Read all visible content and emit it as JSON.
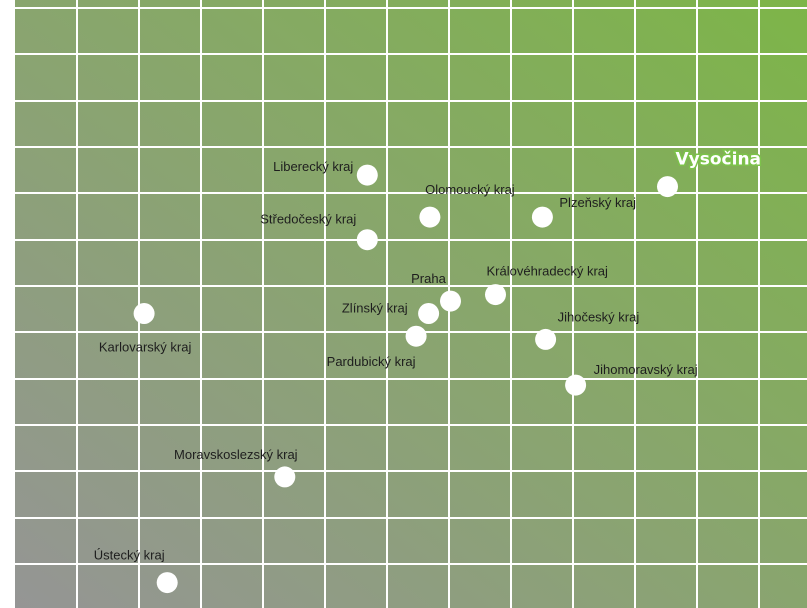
{
  "colors": {
    "gradient_light": "#7db548",
    "gradient_dark": "#959595",
    "grid": "#ffffff",
    "point": "#ffffff",
    "label": "#1e1e1e",
    "highlight_outline": "#7cc24a"
  },
  "chart_data": {
    "type": "scatter",
    "title": "",
    "xlabel": "",
    "ylabel": "",
    "grid": true,
    "legend": "none",
    "axes_labeled": false,
    "xlim": [
      0,
      13
    ],
    "ylim": [
      0,
      13
    ],
    "highlight": "Vysočina",
    "points": [
      {
        "label": "Liberecký kraj",
        "x": 5.65,
        "y": 9.38
      },
      {
        "label": "Olomoucký kraj",
        "x": 6.65,
        "y": 8.47
      },
      {
        "label": "Plzeňský kraj",
        "x": 8.45,
        "y": 8.47
      },
      {
        "label": "Vysočina",
        "x": 10.45,
        "y": 9.13
      },
      {
        "label": "Středočeský kraj",
        "x": 5.65,
        "y": 7.98
      },
      {
        "label": "Praha",
        "x": 6.98,
        "y": 6.65
      },
      {
        "label": "Královéhradecký kraj",
        "x": 7.7,
        "y": 6.79
      },
      {
        "label": "Zlínský kraj",
        "x": 6.63,
        "y": 6.38
      },
      {
        "label": "Pardubický kraj",
        "x": 6.43,
        "y": 5.89
      },
      {
        "label": "Karlovarský kraj",
        "x": 2.08,
        "y": 6.38
      },
      {
        "label": "Jihočeský kraj",
        "x": 8.5,
        "y": 5.82
      },
      {
        "label": "Jihomoravský kraj",
        "x": 8.98,
        "y": 4.83
      },
      {
        "label": "Moravskoslezský kraj",
        "x": 4.33,
        "y": 2.84
      },
      {
        "label": "Ústecký kraj",
        "x": 2.45,
        "y": 0.55
      }
    ]
  }
}
